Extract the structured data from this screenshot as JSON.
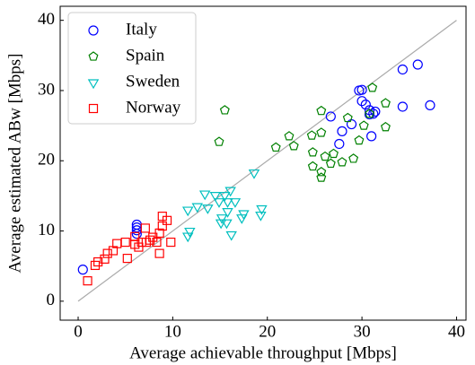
{
  "chart_data": {
    "type": "scatter",
    "xlabel": "Average achievable throughput [Mbps]",
    "ylabel": "Average estimated ABw [Mbps]",
    "xlim": [
      -1.9,
      41
    ],
    "ylim": [
      -2.7,
      42
    ],
    "xticks": [
      0,
      10,
      20,
      30,
      40
    ],
    "yticks": [
      0,
      10,
      20,
      30,
      40
    ],
    "grid": false,
    "legend": "upper left",
    "diagonal": {
      "x": [
        0,
        40
      ],
      "y": [
        0,
        40
      ],
      "color": "#aaaaaa"
    },
    "series": [
      {
        "name": "Italy",
        "color": "#0000ff",
        "marker": "circle",
        "x": [
          0.5,
          6.2,
          6.2,
          6.2,
          6.2,
          35.9,
          34.3,
          34.3,
          37.2,
          29.7,
          30,
          26.7,
          28.9,
          27.6,
          27.9,
          30,
          30.4,
          30.8,
          31.2,
          30.8,
          31,
          31.4
        ],
        "values": [
          4.5,
          10.9,
          10.5,
          10.1,
          9.6,
          33.7,
          33,
          27.7,
          27.9,
          30,
          30.1,
          26.3,
          25.2,
          22.4,
          24.2,
          28.5,
          28,
          27.2,
          26.7,
          26.6,
          23.5,
          27
        ]
      },
      {
        "name": "Spain",
        "color": "#008000",
        "marker": "pentagon",
        "x": [
          15.5,
          14.9,
          20.9,
          22.3,
          22.8,
          24.7,
          25.7,
          25.7,
          24.8,
          24.8,
          25.7,
          25.7,
          26.1,
          27,
          26.7,
          27.9,
          29.1,
          29.7,
          30.2,
          30.8,
          31.1,
          32.5,
          32.5,
          28.5
        ],
        "values": [
          27.2,
          22.7,
          21.9,
          23.5,
          22.1,
          23.6,
          27.1,
          24,
          21.2,
          19.2,
          18.4,
          17.6,
          20.6,
          21,
          19.6,
          19.8,
          20.3,
          22.9,
          25,
          26.7,
          30.4,
          28.2,
          24.8,
          26.1
        ]
      },
      {
        "name": "Sweden",
        "color": "#00bfbf",
        "marker": "triangle-down",
        "x": [
          18.6,
          19.4,
          19.3,
          17.5,
          17.3,
          16.1,
          15.5,
          14.5,
          13.4,
          12.6,
          11.6,
          14.9,
          15.8,
          16.6,
          15.8,
          15.2,
          15.1,
          15.7,
          16.2,
          11.8,
          11.6,
          13.7
        ],
        "values": [
          18.3,
          13.2,
          12.3,
          12.5,
          11.9,
          15.8,
          15.1,
          15.1,
          15.3,
          13.5,
          13,
          14.2,
          14.2,
          14.2,
          12.8,
          11.9,
          11.2,
          11.2,
          9.5,
          10,
          9.3,
          13.3
        ]
      },
      {
        "name": "Norway",
        "color": "#ff0000",
        "marker": "square",
        "x": [
          1,
          2.1,
          1.8,
          2.8,
          3.1,
          3.7,
          4.1,
          5,
          6,
          6,
          6.7,
          7.1,
          7.2,
          7.9,
          8.3,
          8.6,
          8.9,
          9.4,
          8.9,
          9.8,
          8.6,
          6.4,
          5.2,
          7.6
        ],
        "values": [
          2.9,
          5.6,
          5.1,
          6,
          6.8,
          7.2,
          8.2,
          8.4,
          9.2,
          8.1,
          8.4,
          10.4,
          8.4,
          9.1,
          8.4,
          6.8,
          12.1,
          11.5,
          10.7,
          8.4,
          9.7,
          7.7,
          6.1,
          8.7
        ]
      }
    ]
  }
}
